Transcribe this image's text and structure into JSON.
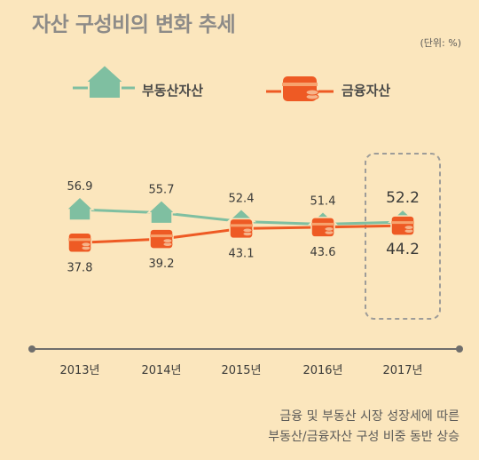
{
  "header": {
    "title": "자산 구성비의 변화 추세",
    "unit": "(단위: %)"
  },
  "legend": [
    {
      "label": "부동산자산",
      "icon": "house-icon",
      "color": "#7fbfa1"
    },
    {
      "label": "금융자산",
      "icon": "wallet-coins-icon",
      "color": "#ee5a24"
    }
  ],
  "footnote": {
    "line1": "금융 및 부동산 시장 성장세에 따른",
    "line2": "부동산/금융자산 구성 비중 동반 상승"
  },
  "chart_data": {
    "type": "line",
    "categories": [
      "2013년",
      "2014년",
      "2015년",
      "2016년",
      "2017년"
    ],
    "series": [
      {
        "name": "부동산자산",
        "values": [
          56.9,
          55.7,
          52.4,
          51.4,
          52.2
        ],
        "color": "#7fbfa1"
      },
      {
        "name": "금융자산",
        "values": [
          37.8,
          39.2,
          43.1,
          43.6,
          44.2
        ],
        "color": "#ee5a24"
      }
    ],
    "highlight": "2017년",
    "title": "자산 구성비의 변화 추세",
    "ylabel": "",
    "xlabel": ""
  }
}
